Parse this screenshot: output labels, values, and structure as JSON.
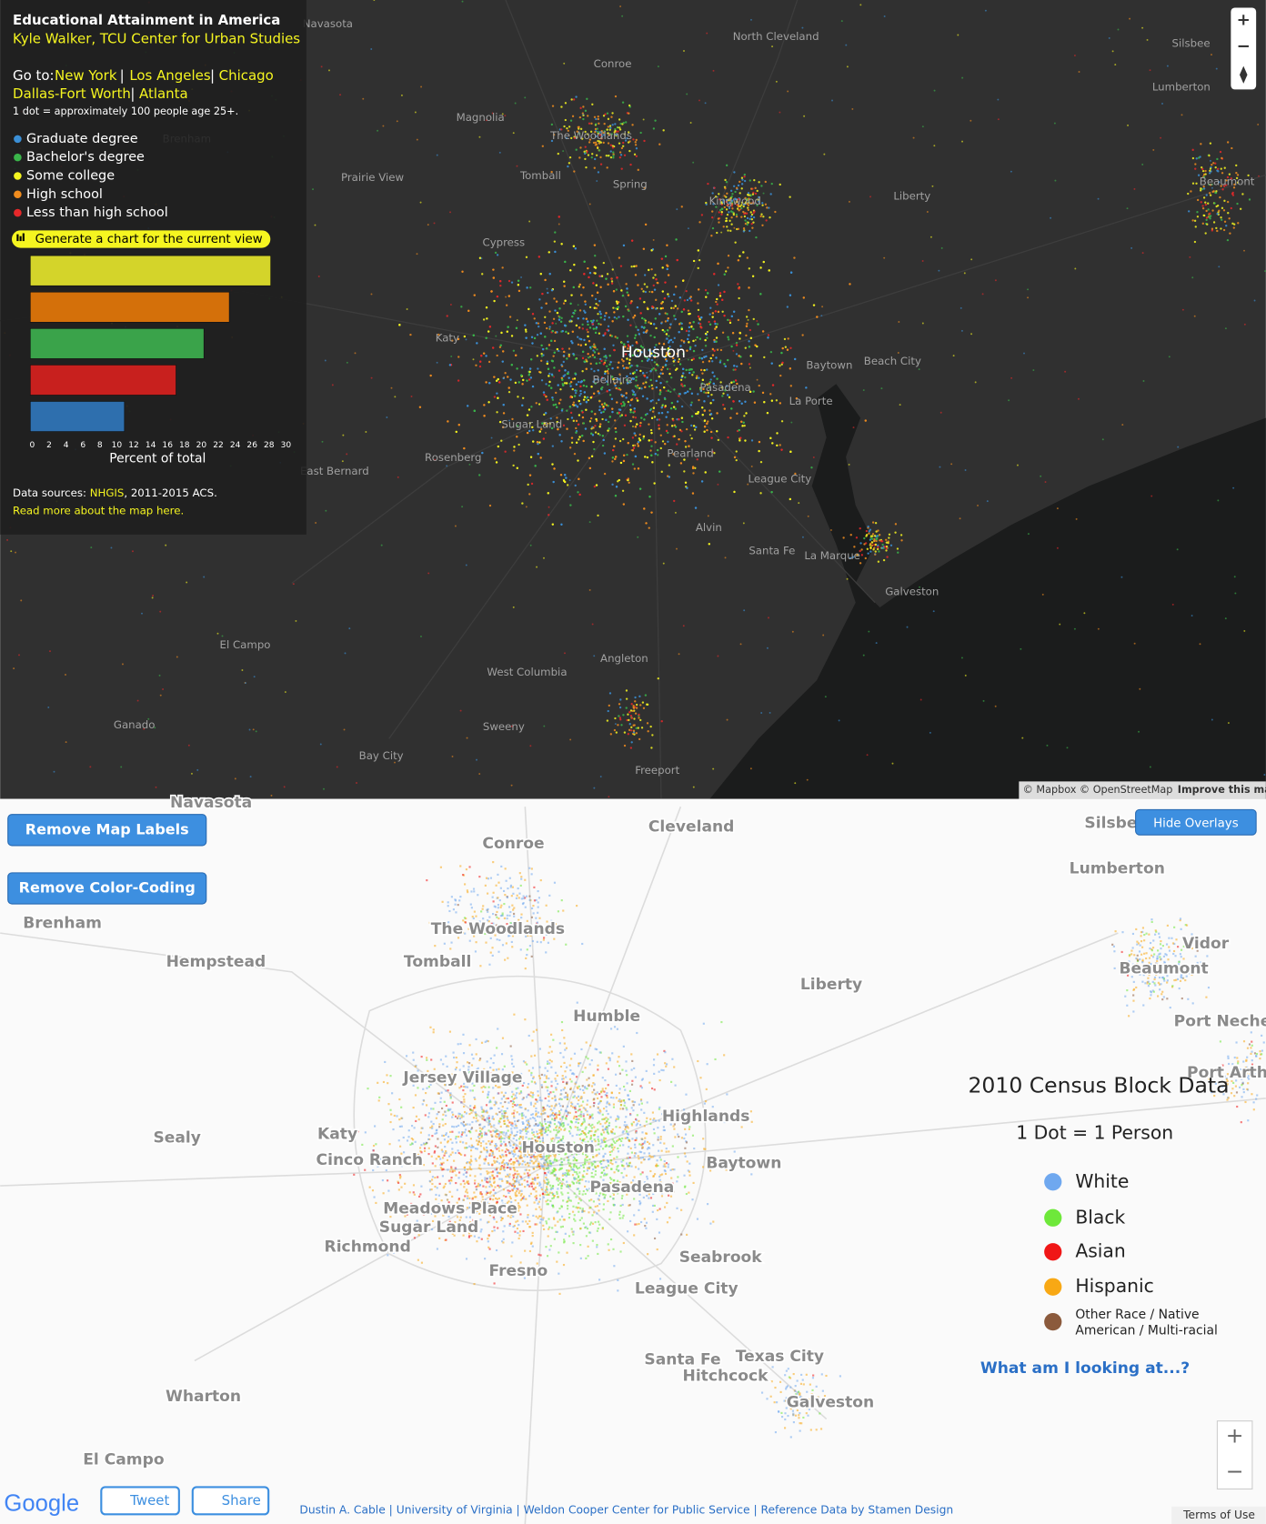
{
  "top_map": {
    "title": "Educational Attainment in America",
    "author": "Kyle Walker, TCU Center for Urban Studies",
    "goto_label": "Go to:",
    "goto_links": [
      "New York",
      "Los Angeles",
      "Chicago",
      "Dallas-Fort Worth",
      "Atlanta"
    ],
    "separator": "|",
    "dot_note": "1 dot = approximately 100 people age 25+.",
    "legend": [
      {
        "name": "Graduate degree",
        "color": "#3b8fd6"
      },
      {
        "name": "Bachelor's degree",
        "color": "#3ab54a"
      },
      {
        "name": "Some college",
        "color": "#f5f520"
      },
      {
        "name": "High school",
        "color": "#f08c1e"
      },
      {
        "name": "Less than high school",
        "color": "#e6282a"
      }
    ],
    "chart_button": "Generate a chart for the current view",
    "sources_label": "Data sources: ",
    "sources_link": "NHGIS",
    "sources_rest": ", 2011-2015 ACS.",
    "read_more": "Read more about the map here.",
    "attribution": "© Mapbox © OpenStreetMap",
    "improve": "Improve this map",
    "zoom_in": "+",
    "zoom_out": "−",
    "places": [
      "Navasota",
      "North Cleveland",
      "Silsbee",
      "Conroe",
      "Magnolia",
      "The Woodlands",
      "Lumberton",
      "Brenham",
      "Tomball",
      "Spring",
      "Prairie View",
      "Beaumont",
      "Kingwood",
      "Liberty",
      "Cypress",
      "Katy",
      "Houston",
      "Bellaire",
      "Baytown",
      "Beach City",
      "Pasadena",
      "La Porte",
      "Sugar Land",
      "Rosenberg",
      "Pearland",
      "East Bernard",
      "League City",
      "Alvin",
      "Santa Fe",
      "La Marque",
      "Galveston",
      "El Campo",
      "Angleton",
      "West Columbia",
      "Ganado",
      "Sweeny",
      "Bay City",
      "Freeport"
    ]
  },
  "chart_data": {
    "type": "bar",
    "orientation": "horizontal",
    "categories": [
      null,
      null,
      null,
      null,
      null
    ],
    "values": [
      28.2,
      23.3,
      20.3,
      17,
      10.9
    ],
    "colors": [
      "#d4d42a",
      "#d4700a",
      "#3aa34a",
      "#c8201e",
      "#2e6fae"
    ],
    "xlim": [
      0,
      30
    ],
    "xticks": [
      0,
      2,
      4,
      6,
      8,
      10,
      12,
      14,
      16,
      18,
      20,
      22,
      24,
      26,
      28,
      30
    ],
    "xlabel": "Percent of total"
  },
  "bottom_map": {
    "buttons": [
      "Remove Map Labels",
      "Remove Color-Coding"
    ],
    "hide_overlays": "Hide Overlays",
    "title": "2010 Census Block Data",
    "subtitle": "1 Dot = 1 Person",
    "legend": [
      {
        "name": "White",
        "color": "#6fa8ef"
      },
      {
        "name": "Black",
        "color": "#6ee83a"
      },
      {
        "name": "Asian",
        "color": "#f01616"
      },
      {
        "name": "Hispanic",
        "color": "#f8a814"
      },
      {
        "name": "Other Race / Native",
        "color": "#8b5a3c"
      }
    ],
    "legend_other_line2": "American / Multi-racial",
    "info_link": "What am I looking at...?",
    "google": "Google",
    "tweet": "Tweet",
    "share": "Share",
    "credits": "Dustin A. Cable | University of Virginia | Weldon Cooper Center for Public Service | Reference Data by Stamen Design",
    "terms": "Terms of Use",
    "zoom_in": "+",
    "zoom_out": "−",
    "places": [
      "Navasota",
      "Conroe",
      "Cleveland",
      "Silsbee",
      "Lumberton",
      "Brenham",
      "The Woodlands",
      "Vidor",
      "Hempstead",
      "Tomball",
      "Beaumont",
      "Liberty",
      "Humble",
      "Port Neches",
      "Jersey Village",
      "Port Arthur",
      "Highlands",
      "Sealy",
      "Katy",
      "Houston",
      "Cinco Ranch",
      "Baytown",
      "Pasadena",
      "Meadows Place",
      "Sugar Land",
      "Richmond",
      "Seabrook",
      "Fresno",
      "League City",
      "Santa Fe",
      "Texas City",
      "Hitchcock",
      "Galveston",
      "Wharton",
      "El Campo"
    ]
  }
}
